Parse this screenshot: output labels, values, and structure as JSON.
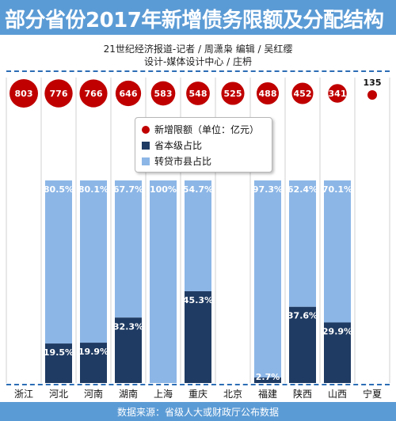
{
  "title": "部分省份2017年新增债务限额及分配结构",
  "credits": {
    "line1": "21世纪经济报道-记者 / 周潇枭    编辑 / 吴红缨",
    "line2": "设计-媒体设计中心 / 庄枬"
  },
  "source": "数据来源：省级人大或财政厅公布数据",
  "colors": {
    "header": "#5b9bd5",
    "circle": "#c00000",
    "provincial": "#1f3b63",
    "transfer": "#8cb6e6",
    "dash": "#2c6db5"
  },
  "legend": {
    "items": [
      {
        "label": "新增限额（单位：亿元）",
        "symbol": "circle",
        "color": "#c00000"
      },
      {
        "label": "省本级占比",
        "symbol": "square",
        "color": "#1f3b63"
      },
      {
        "label": "转贷市县占比",
        "symbol": "square",
        "color": "#8cb6e6"
      }
    ]
  },
  "chart_data": {
    "type": "bar",
    "stacked": true,
    "categories": [
      "浙江",
      "河北",
      "河南",
      "湖南",
      "上海",
      "重庆",
      "北京",
      "福建",
      "陕西",
      "山西",
      "宁夏"
    ],
    "quota": [
      803,
      776,
      766,
      646,
      583,
      548,
      525,
      488,
      452,
      341,
      135
    ],
    "series": [
      {
        "name": "省本级占比",
        "values": [
          null,
          19.5,
          19.9,
          32.3,
          null,
          45.3,
          null,
          2.7,
          37.6,
          29.9,
          null
        ]
      },
      {
        "name": "转贷市县占比",
        "values": [
          null,
          80.5,
          80.1,
          67.7,
          100,
          54.7,
          null,
          97.3,
          62.4,
          70.1,
          null
        ]
      }
    ],
    "labels_provincial": [
      "",
      "19.5%",
      "19.9%",
      "32.3%",
      "",
      "45.3%",
      "",
      "2.7%",
      "37.6%",
      "29.9%",
      ""
    ],
    "labels_transfer": [
      "",
      "80.5%",
      "80.1%",
      "67.7%",
      "100%",
      "54.7%",
      "",
      "97.3%",
      "62.4%",
      "70.1%",
      ""
    ],
    "quota_labels": [
      "803",
      "776",
      "766",
      "646",
      "583",
      "548",
      "525",
      "488",
      "452",
      "341",
      "135"
    ],
    "ylim": [
      0,
      100
    ]
  }
}
